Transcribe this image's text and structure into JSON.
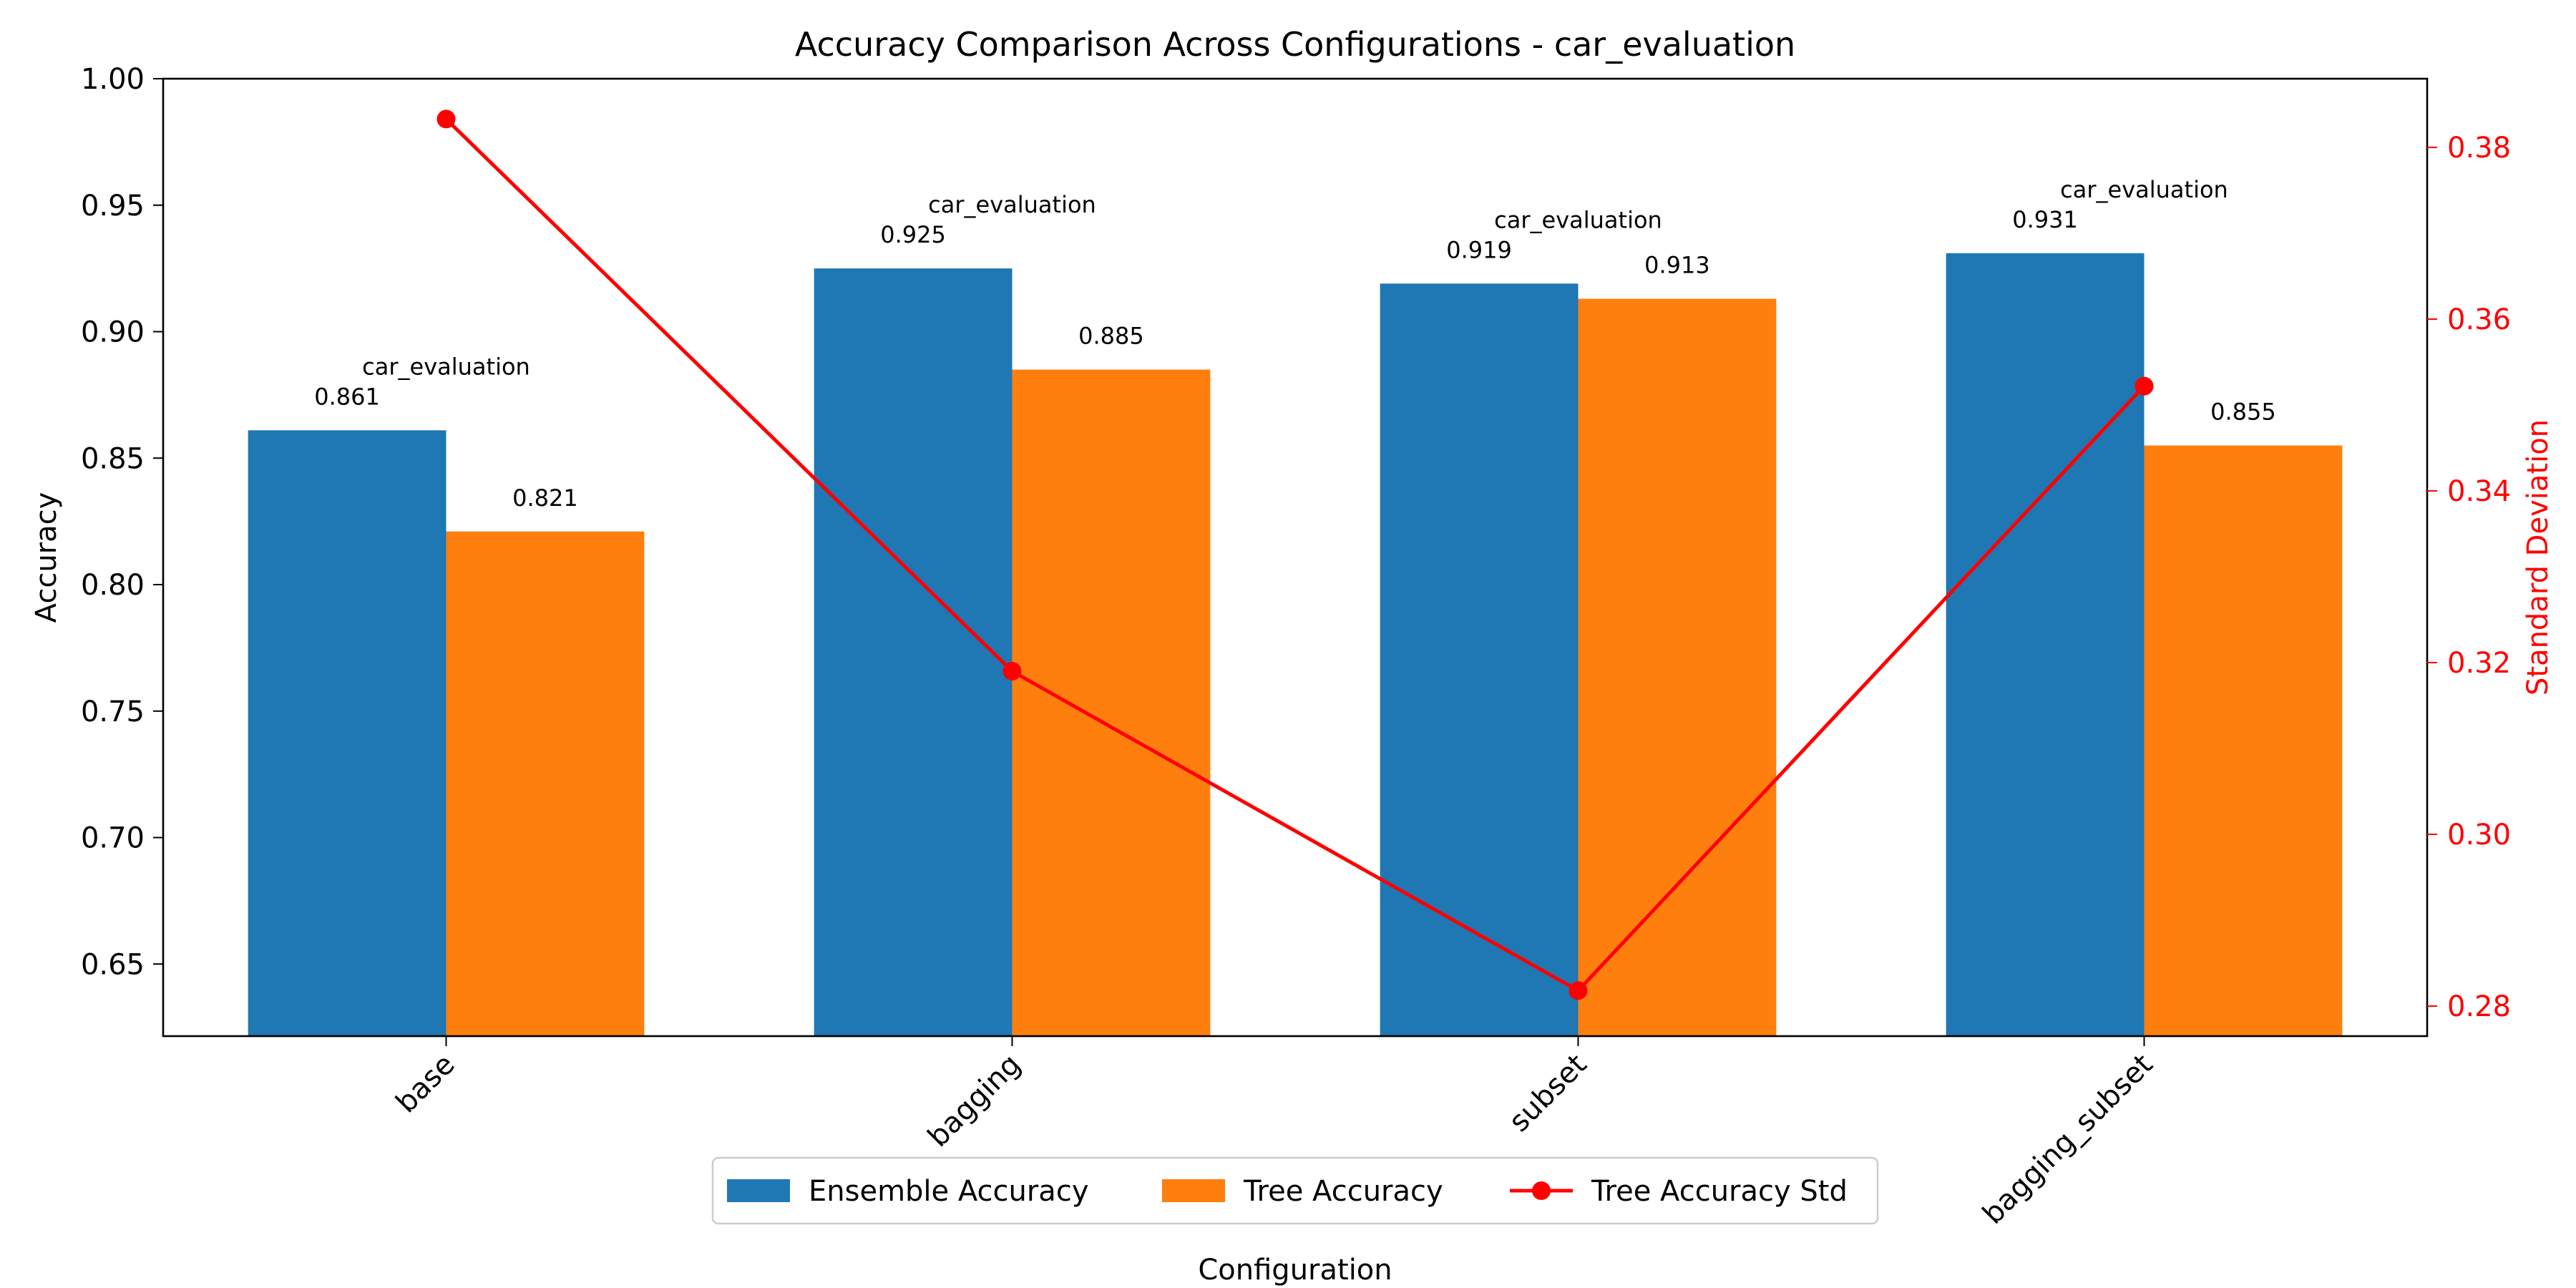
{
  "chart_data": {
    "type": "bar",
    "title": "Accuracy Comparison Across Configurations - car_evaluation",
    "xlabel": "Configuration",
    "ylabel": "Accuracy",
    "y2label": "Standard Deviation",
    "categories": [
      "base",
      "bagging",
      "subset",
      "bagging_subset"
    ],
    "ylim": [
      0.6215,
      1.0
    ],
    "y2lim": [
      0.2765,
      0.388
    ],
    "yticks": [
      0.65,
      0.7,
      0.75,
      0.8,
      0.85,
      0.9,
      0.95,
      1.0
    ],
    "y2ticks": [
      0.28,
      0.3,
      0.32,
      0.34,
      0.36,
      0.38
    ],
    "grid": false,
    "legend_position": "bottom-center",
    "series": [
      {
        "name": "Ensemble Accuracy",
        "type": "bar",
        "axis": "left",
        "color": "#1f77b4",
        "values": [
          0.861,
          0.925,
          0.919,
          0.931
        ],
        "labels": [
          "0.861",
          "0.925",
          "0.919",
          "0.931"
        ]
      },
      {
        "name": "Tree Accuracy",
        "type": "bar",
        "axis": "left",
        "color": "#ff7f0e",
        "values": [
          0.821,
          0.885,
          0.913,
          0.855
        ],
        "labels": [
          "0.821",
          "0.885",
          "0.913",
          "0.855"
        ]
      },
      {
        "name": "Tree Accuracy Std",
        "type": "line",
        "axis": "right",
        "color": "#ff0000",
        "values": [
          0.3833,
          0.319,
          0.2818,
          0.3522
        ]
      }
    ],
    "annotations": [
      "car_evaluation",
      "car_evaluation",
      "car_evaluation",
      "car_evaluation"
    ],
    "right_axis_color": "#ff0000"
  }
}
